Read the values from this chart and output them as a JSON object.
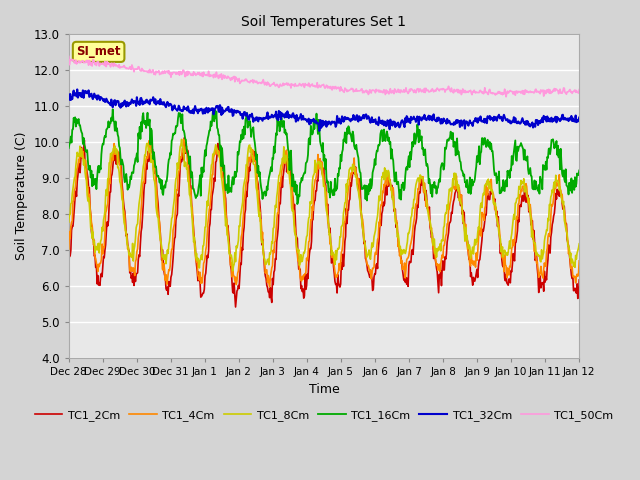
{
  "title": "Soil Temperatures Set 1",
  "xlabel": "Time",
  "ylabel": "Soil Temperature (C)",
  "ylim": [
    4.0,
    13.0
  ],
  "yticks": [
    4.0,
    5.0,
    6.0,
    7.0,
    8.0,
    9.0,
    10.0,
    11.0,
    12.0,
    13.0
  ],
  "x_tick_labels": [
    "Dec 28",
    "Dec 29",
    "Dec 30",
    "Dec 31",
    "Jan 1",
    "Jan 2",
    "Jan 3",
    "Jan 4",
    "Jan 5",
    "Jan 6",
    "Jan 7",
    "Jan 8",
    "Jan 9",
    "Jan 10",
    "Jan 11",
    "Jan 12"
  ],
  "series_labels": [
    "TC1_2Cm",
    "TC1_4Cm",
    "TC1_8Cm",
    "TC1_16Cm",
    "TC1_32Cm",
    "TC1_50Cm"
  ],
  "series_colors": [
    "#cc0000",
    "#ff8800",
    "#cccc00",
    "#00aa00",
    "#0000cc",
    "#ff99dd"
  ],
  "annotation_text": "SI_met",
  "annotation_bg": "#ffff99",
  "annotation_border": "#999900",
  "fig_facecolor": "#d4d4d4",
  "plot_facecolor": "#e8e8e8",
  "grid_color": "#ffffff",
  "n_points": 720,
  "days": 15
}
